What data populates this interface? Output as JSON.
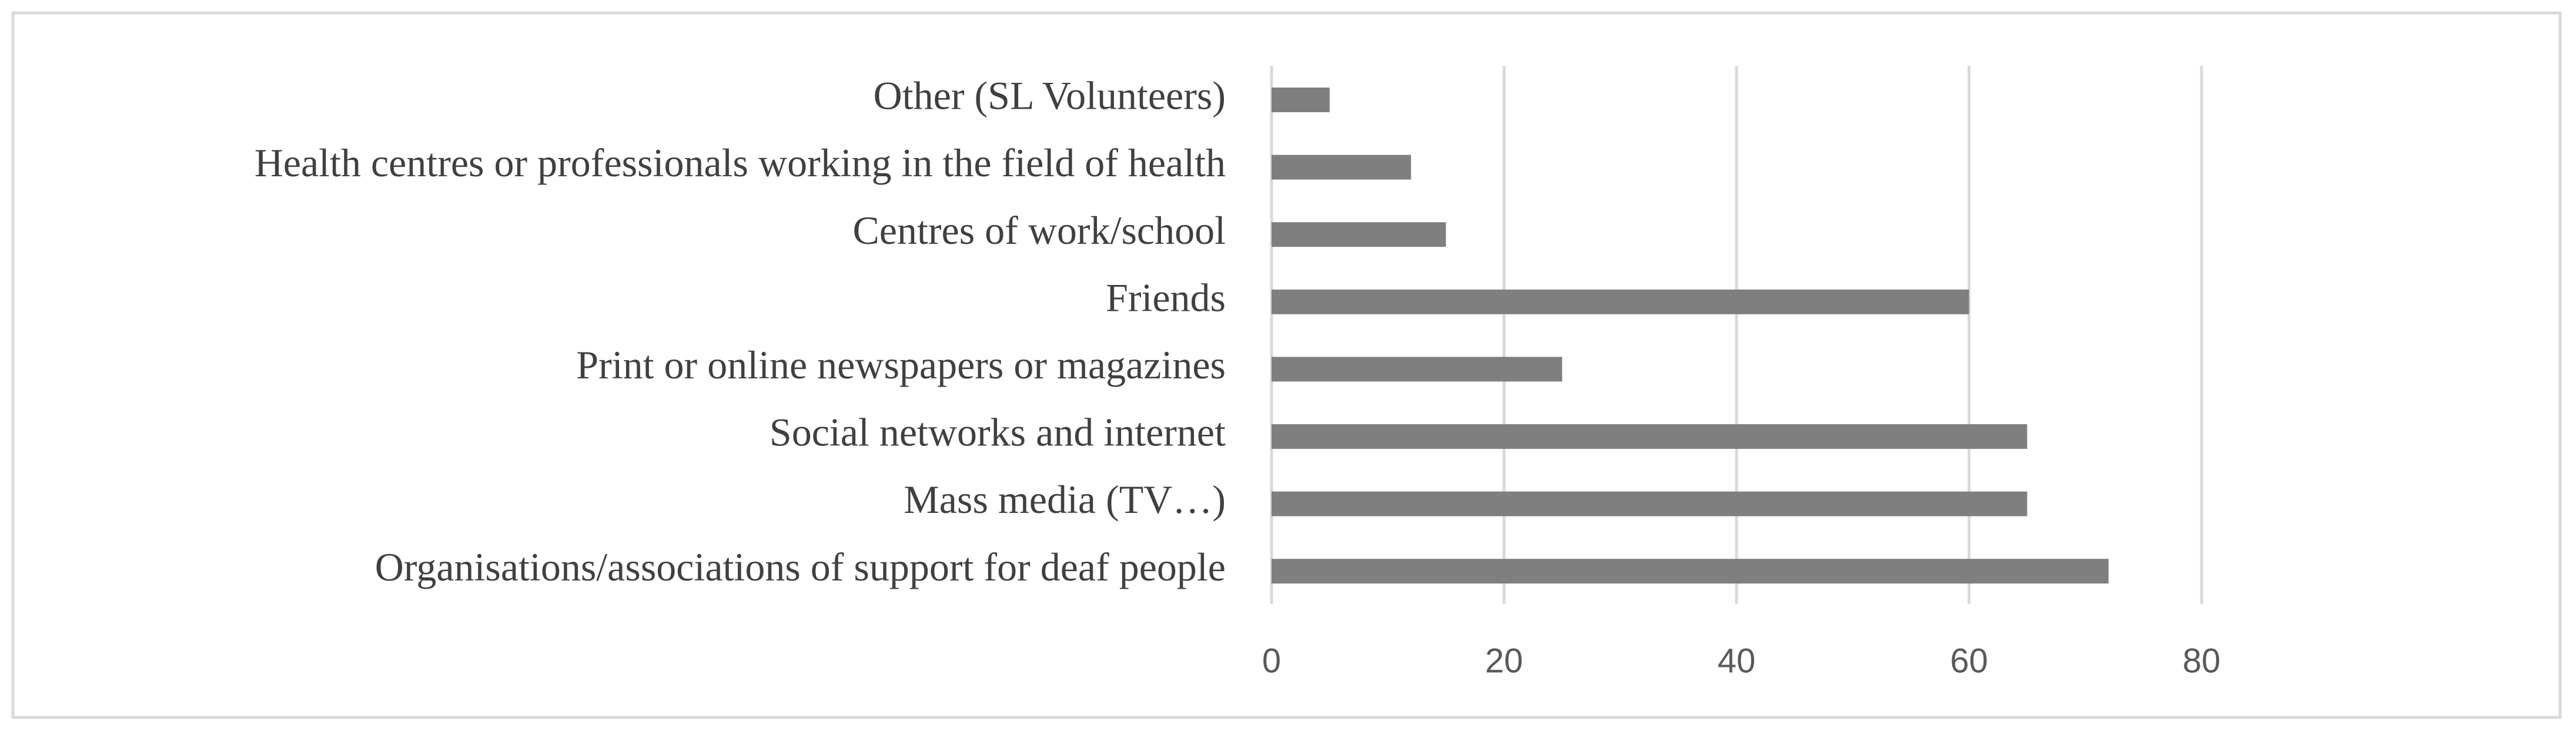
{
  "chart_data": {
    "type": "bar",
    "orientation": "horizontal",
    "categories": [
      "Other (SL Volunteers)",
      "Health centres or professionals working in the field of health",
      "Centres of work/school",
      "Friends",
      "Print or online newspapers or magazines",
      "Social networks and internet",
      "Mass media (TV…)",
      "Organisations/associations of support for deaf people"
    ],
    "values": [
      5,
      12,
      15,
      60,
      25,
      65,
      65,
      72
    ],
    "color": "#7f7f7f",
    "xlim": [
      0,
      80
    ],
    "xticks": [
      0,
      20,
      40,
      60,
      80
    ],
    "grid": true
  }
}
